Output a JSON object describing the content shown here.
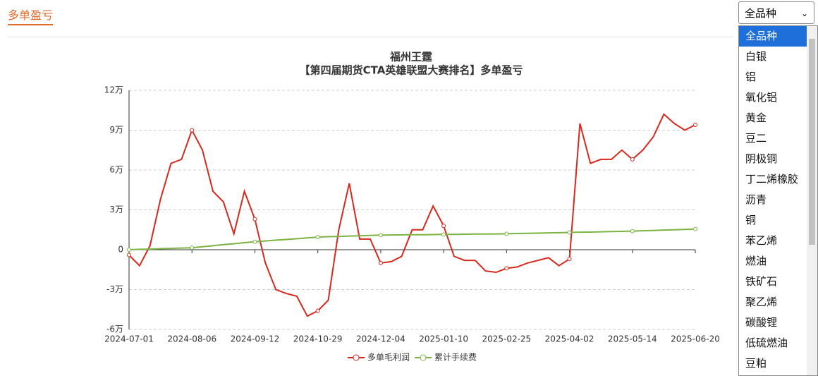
{
  "header": {
    "title": "多单盈亏"
  },
  "dropdown": {
    "selected": "全品种",
    "options": [
      "全品种",
      "白银",
      "铝",
      "氧化铝",
      "黄金",
      "豆二",
      "阴极铜",
      "丁二烯橡胶",
      "沥青",
      "铜",
      "苯乙烯",
      "燃油",
      "铁矿石",
      "聚乙烯",
      "碳酸锂",
      "低硫燃油",
      "豆粕"
    ]
  },
  "chart_data": {
    "type": "line",
    "title": "福州王霆",
    "subtitle": "【第四届期货CTA英雄联盟大赛排名】多单盈亏",
    "categories": [
      "2024-07-01",
      null,
      null,
      null,
      null,
      null,
      "2024-08-06",
      null,
      null,
      null,
      null,
      null,
      "2024-09-12",
      null,
      null,
      null,
      null,
      null,
      "2024-10-29",
      null,
      null,
      null,
      null,
      null,
      "2024-12-04",
      null,
      null,
      null,
      null,
      null,
      "2025-01-10",
      null,
      null,
      null,
      null,
      null,
      "2025-02-25",
      null,
      null,
      null,
      null,
      null,
      "2025-04-02",
      null,
      null,
      null,
      null,
      null,
      "2025-05-14",
      null,
      null,
      null,
      null,
      null,
      "2025-06-20"
    ],
    "series": [
      {
        "name": "多单毛利润",
        "color": "#d7281e",
        "values": [
          -0.4,
          -1.2,
          0.3,
          3.8,
          6.5,
          6.8,
          9.0,
          7.5,
          4.4,
          3.6,
          1.2,
          4.4,
          2.3,
          -1.0,
          -3.0,
          -3.3,
          -3.5,
          -5.0,
          -4.6,
          -3.8,
          1.5,
          5.0,
          0.8,
          0.8,
          -1.0,
          -0.9,
          -0.5,
          1.5,
          1.5,
          3.3,
          1.8,
          -0.5,
          -0.8,
          -0.8,
          -1.6,
          -1.7,
          -1.4,
          -1.3,
          -1.0,
          -0.8,
          -0.6,
          -1.2,
          -0.7,
          9.5,
          6.5,
          6.8,
          6.8,
          7.5,
          6.8,
          7.5,
          8.5,
          10.2,
          9.5,
          9.0,
          9.4
        ]
      },
      {
        "name": "累计手续费",
        "color": "#7cb342",
        "values": [
          0,
          0.03,
          0.05,
          0.08,
          0.1,
          0.13,
          0.15,
          0.23,
          0.3,
          0.38,
          0.45,
          0.53,
          0.6,
          0.66,
          0.72,
          0.77,
          0.83,
          0.89,
          0.95,
          0.98,
          1.0,
          1.03,
          1.05,
          1.08,
          1.1,
          1.11,
          1.12,
          1.13,
          1.13,
          1.14,
          1.15,
          1.16,
          1.17,
          1.18,
          1.18,
          1.19,
          1.2,
          1.22,
          1.23,
          1.25,
          1.27,
          1.28,
          1.3,
          1.32,
          1.33,
          1.35,
          1.37,
          1.38,
          1.4,
          1.43,
          1.45,
          1.48,
          1.5,
          1.53,
          1.55
        ]
      }
    ],
    "ylim": [
      -6,
      12
    ],
    "yticks": [
      {
        "value": -6,
        "label": "-6万"
      },
      {
        "value": -3,
        "label": "-3万"
      },
      0,
      {
        "value": 3,
        "label": "3万"
      },
      {
        "value": 6,
        "label": "6万"
      },
      {
        "value": 9,
        "label": "9万"
      },
      {
        "value": 12,
        "label": "12万"
      }
    ],
    "grid": true
  }
}
